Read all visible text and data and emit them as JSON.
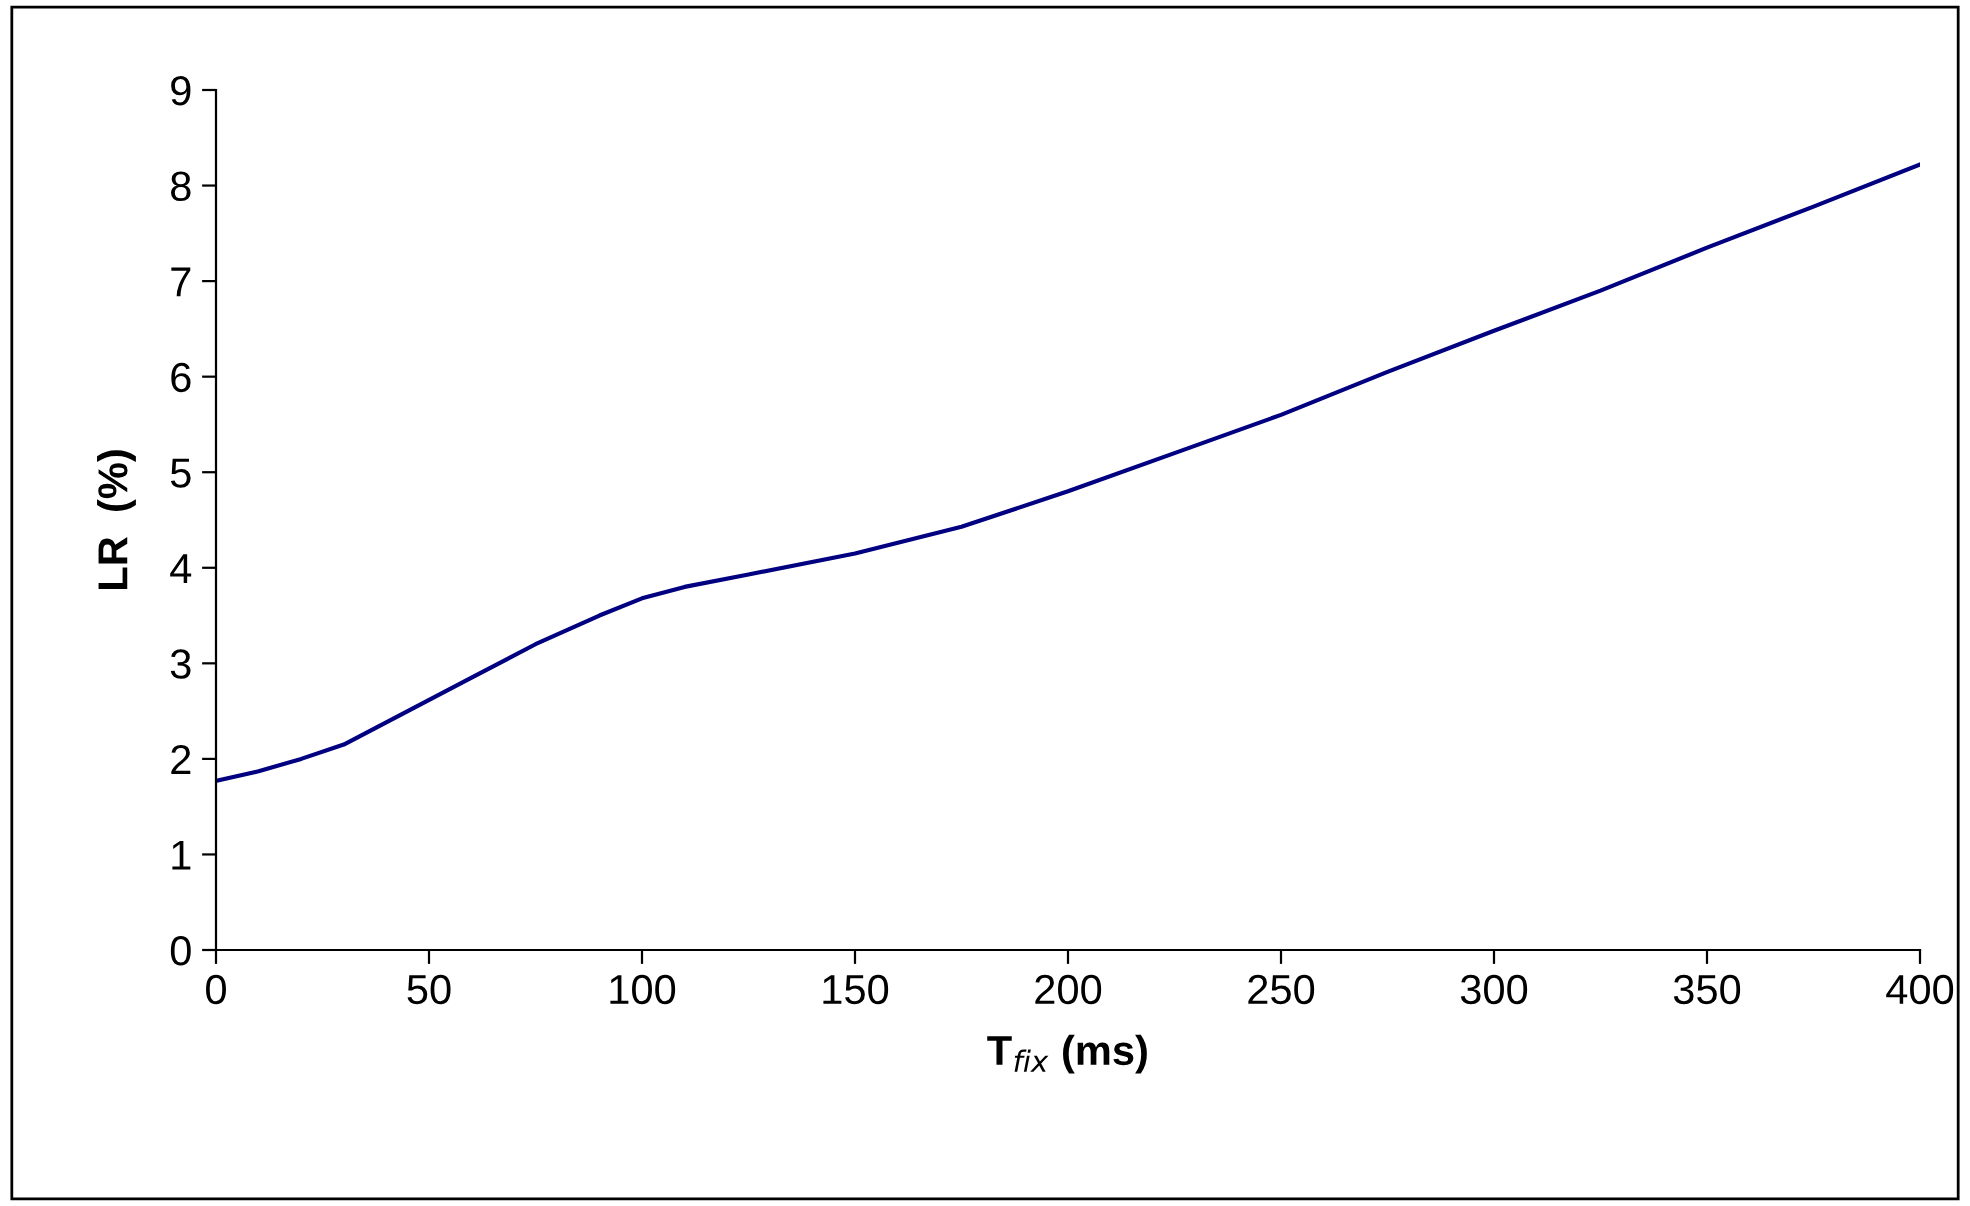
{
  "chart_data": {
    "type": "line",
    "xlabel": "T$_{fix}$ (ms)",
    "ylabel": "LR  (%)",
    "x": [
      0,
      10,
      20,
      30,
      45,
      60,
      75,
      90,
      100,
      110,
      125,
      150,
      175,
      200,
      225,
      250,
      275,
      300,
      325,
      350,
      375,
      400
    ],
    "series": [
      {
        "color": "#000080",
        "values": [
          1.77,
          1.87,
          2.0,
          2.15,
          2.5,
          2.85,
          3.2,
          3.5,
          3.68,
          3.8,
          3.93,
          4.15,
          4.43,
          4.8,
          5.2,
          5.6,
          6.05,
          6.48,
          6.9,
          7.35,
          7.78,
          8.22
        ]
      }
    ],
    "xlim": [
      0,
      400
    ],
    "ylim": [
      0,
      9
    ],
    "xticks": [
      0,
      50,
      100,
      150,
      200,
      250,
      300,
      350,
      400
    ],
    "yticks": [
      0,
      1,
      2,
      3,
      4,
      5,
      6,
      7,
      8,
      9
    ],
    "grid": false,
    "legend": false,
    "marker": "none",
    "line_style": "solid"
  }
}
